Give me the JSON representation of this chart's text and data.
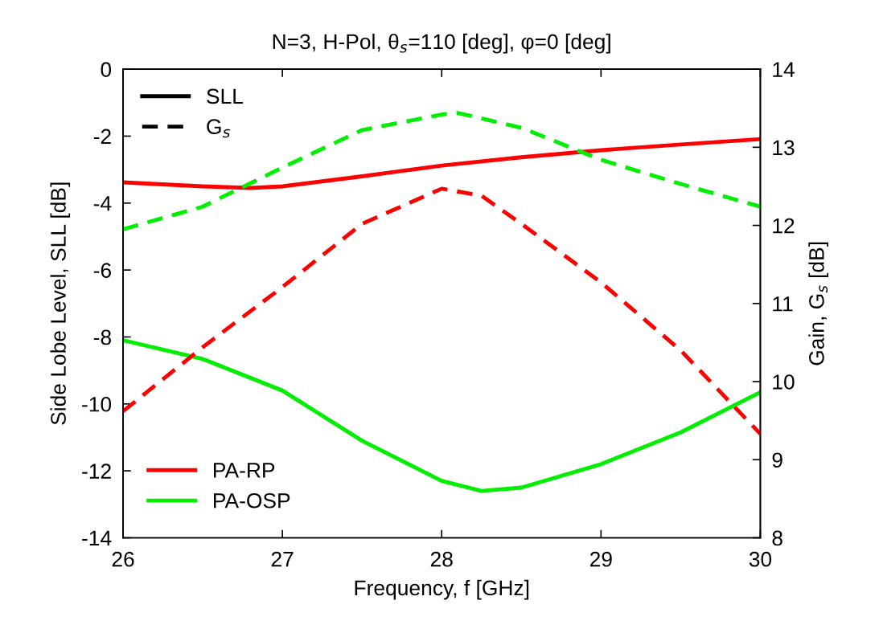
{
  "chart_data": {
    "type": "line",
    "title": "N=3, H-Pol, θ$_{s}$=110 [deg], φ=0 [deg]",
    "xlabel": "Frequency, f [GHz]",
    "ylabel": "Side Lobe Level, SLL [dB]",
    "y2label": "Gain, G$_{s}$ [dB]",
    "xlim": [
      26,
      30
    ],
    "xticks": [
      26,
      27,
      28,
      29,
      30
    ],
    "ylim": [
      -14,
      0
    ],
    "yticks": [
      -14,
      -12,
      -10,
      -8,
      -6,
      -4,
      -2,
      0
    ],
    "y2lim": [
      8,
      14
    ],
    "y2ticks": [
      8,
      9,
      10,
      11,
      12,
      13,
      14
    ],
    "grid": false,
    "legend": "bottom left",
    "marker": "none",
    "annotations": [
      "SLL",
      "G$_{s}$"
    ],
    "series": [
      {
        "name": "PA-RP",
        "color": "#ff0000",
        "line_style": "solid",
        "x": [
          26,
          26.5,
          26.8,
          27,
          27.5,
          28,
          28.5,
          29,
          29.5,
          30
        ],
        "values": [
          -3.38,
          -3.5,
          -3.55,
          -3.5,
          -3.2,
          -2.88,
          -2.63,
          -2.42,
          -2.25,
          -2.09
        ]
      },
      {
        "name": "PA-OSP",
        "color": "#00ee00",
        "line_style": "solid",
        "x": [
          26,
          26.5,
          27,
          27.5,
          28,
          28.25,
          28.5,
          29,
          29.5,
          30
        ],
        "values": [
          -8.1,
          -8.66,
          -9.6,
          -11.1,
          -12.3,
          -12.6,
          -12.5,
          -11.8,
          -10.85,
          -9.65
        ]
      },
      {
        "color": "#ff0000",
        "line_style": "dashed",
        "axis": "y2",
        "x": [
          26,
          26.5,
          27,
          27.5,
          28,
          28.25,
          28.5,
          29,
          29.5,
          30
        ],
        "values": [
          9.62,
          10.44,
          11.21,
          12.02,
          12.47,
          12.38,
          12.02,
          11.27,
          10.4,
          9.33
        ]
      },
      {
        "color": "#00ee00",
        "line_style": "dashed",
        "axis": "y2",
        "x": [
          26,
          26.5,
          27,
          27.5,
          28,
          28.1,
          28.5,
          29,
          29.5,
          30
        ],
        "values": [
          11.95,
          12.24,
          12.74,
          13.22,
          13.42,
          13.44,
          13.25,
          12.84,
          12.53,
          12.24
        ]
      }
    ]
  }
}
